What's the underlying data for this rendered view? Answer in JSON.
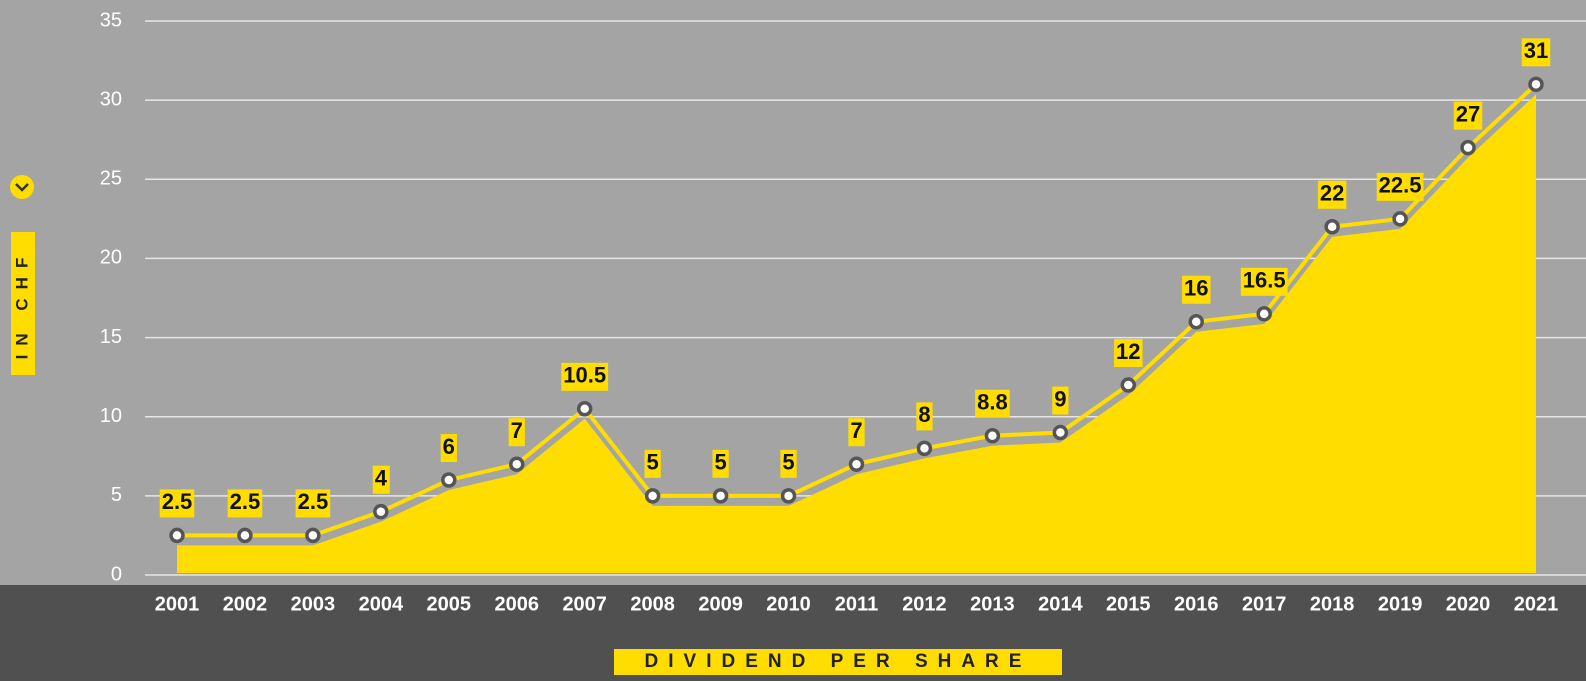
{
  "chart_data": {
    "type": "line",
    "x_axis_label": "DIVIDEND PER SHARE",
    "y_axis_label": "IN CHF",
    "categories": [
      "2001",
      "2002",
      "2003",
      "2004",
      "2005",
      "2006",
      "2007",
      "2008",
      "2009",
      "2010",
      "2011",
      "2012",
      "2013",
      "2014",
      "2015",
      "2016",
      "2017",
      "2018",
      "2019",
      "2020",
      "2021"
    ],
    "series": [
      {
        "color": "#ffdd00",
        "values": [
          2.5,
          2.5,
          2.5,
          4,
          6,
          7,
          10.5,
          5,
          5,
          5,
          7,
          8,
          8.8,
          9,
          12,
          16,
          16.5,
          22,
          22.5,
          27,
          31
        ]
      }
    ],
    "ylim": [
      0,
      35
    ],
    "yticks": [
      0,
      5,
      10,
      15,
      20,
      25,
      30,
      35
    ],
    "grid": true
  }
}
